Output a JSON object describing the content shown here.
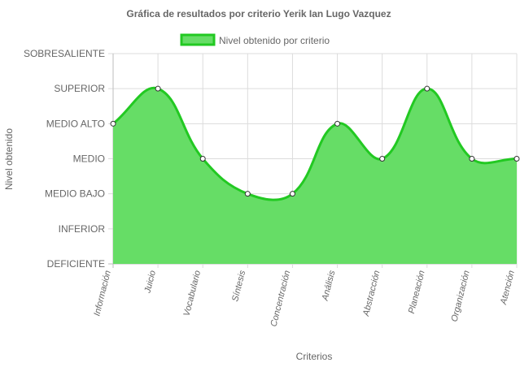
{
  "chart_data": {
    "type": "area",
    "title": "Gráfica de resultados por criterio Yerik Ian Lugo Vazquez",
    "xlabel": "Criterios",
    "ylabel": "Nivel obtenido",
    "y_levels": [
      "DEFICIENTE",
      "INFERIOR",
      "MEDIO BAJO",
      "MEDIO",
      "MEDIO ALTO",
      "SUPERIOR",
      "SOBRESALIENTE"
    ],
    "ylim": [
      0,
      6
    ],
    "categories": [
      "Información",
      "Juicio",
      "Vocabulario",
      "Síntesis",
      "Concentración",
      "Análisis",
      "Abstracción",
      "Planeación",
      "Organización",
      "Atención"
    ],
    "series": [
      {
        "name": "Nivel obtenido por criterio",
        "values": [
          4,
          5,
          3,
          2,
          2,
          4,
          3,
          5,
          3,
          3
        ],
        "color": "#22c922",
        "fill": "#66dd66"
      }
    ],
    "legend": "top",
    "grid": true
  }
}
